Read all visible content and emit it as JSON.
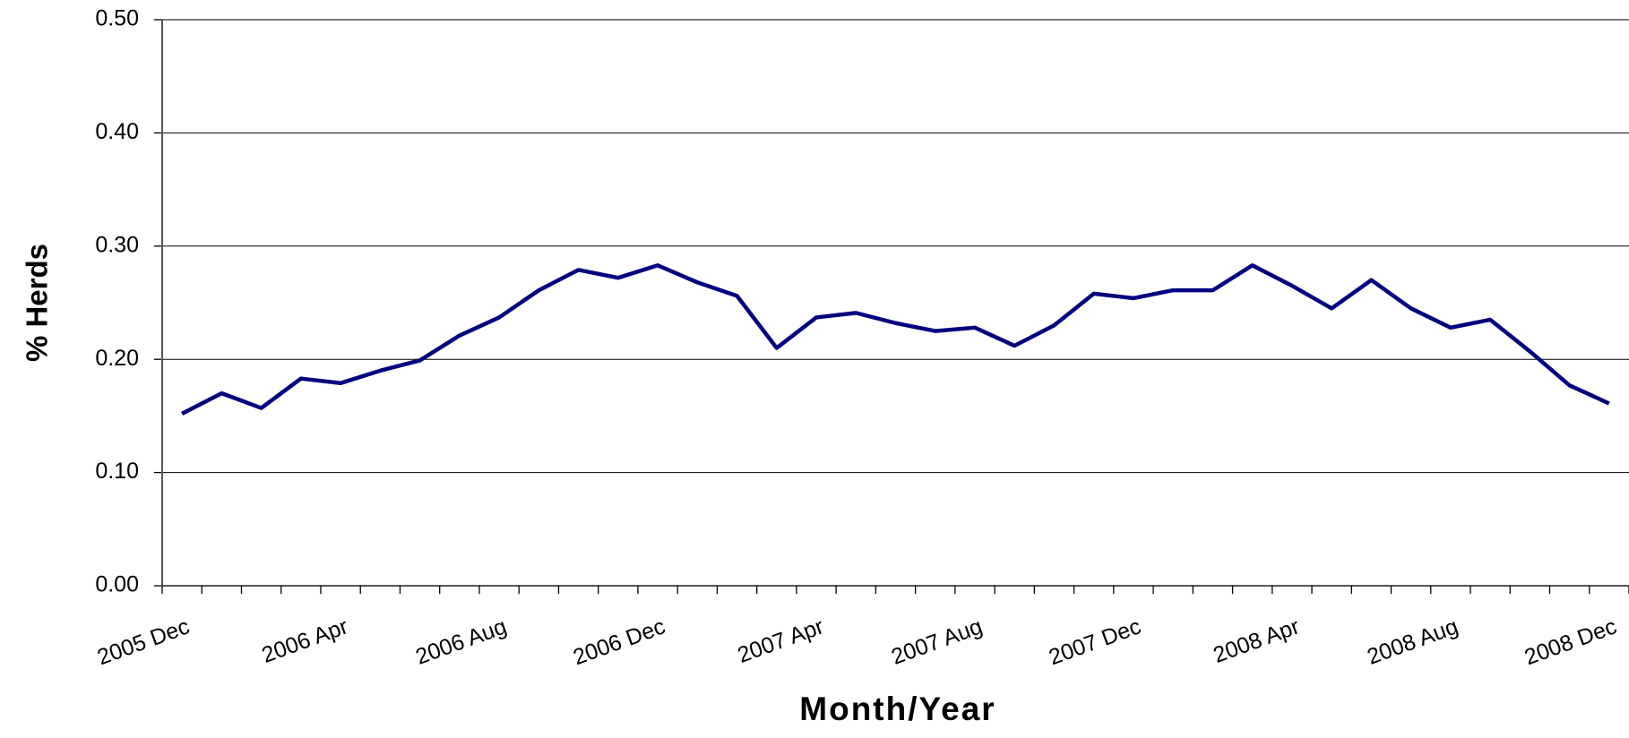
{
  "chart_data": {
    "type": "line",
    "x_label": "Month/Year",
    "y_label": "% Herds",
    "categories": [
      "2005 Dec",
      null,
      null,
      null,
      "2006 Apr",
      null,
      null,
      null,
      "2006 Aug",
      null,
      null,
      null,
      "2006 Dec",
      null,
      null,
      null,
      "2007 Apr",
      null,
      null,
      null,
      "2007 Aug",
      null,
      null,
      null,
      "2007 Dec",
      null,
      null,
      null,
      "2008 Apr",
      null,
      null,
      null,
      "2008 Aug",
      null,
      null,
      null,
      "2008 Dec"
    ],
    "series": [
      {
        "name": "% Herds",
        "color": "#000080",
        "values": [
          0.152,
          0.17,
          0.157,
          0.183,
          0.179,
          0.19,
          0.199,
          0.221,
          0.237,
          0.261,
          0.279,
          0.272,
          0.283,
          0.268,
          0.256,
          0.21,
          0.237,
          0.241,
          0.232,
          0.225,
          0.228,
          0.212,
          0.23,
          0.258,
          0.254,
          0.261,
          0.261,
          0.283,
          0.265,
          0.245,
          0.27,
          0.245,
          0.228,
          0.235,
          0.207,
          0.177,
          0.161
        ]
      }
    ],
    "ylim": [
      0,
      0.5
    ],
    "yticks": [
      {
        "value": 0,
        "label": "0.00"
      },
      {
        "value": 0.1,
        "label": "0.10"
      },
      {
        "value": 0.2,
        "label": "0.20"
      },
      {
        "value": 0.3,
        "label": "0.30"
      },
      {
        "value": 0.4,
        "label": "0.40"
      },
      {
        "value": 0.5,
        "label": "0.50"
      }
    ],
    "grid": true
  }
}
